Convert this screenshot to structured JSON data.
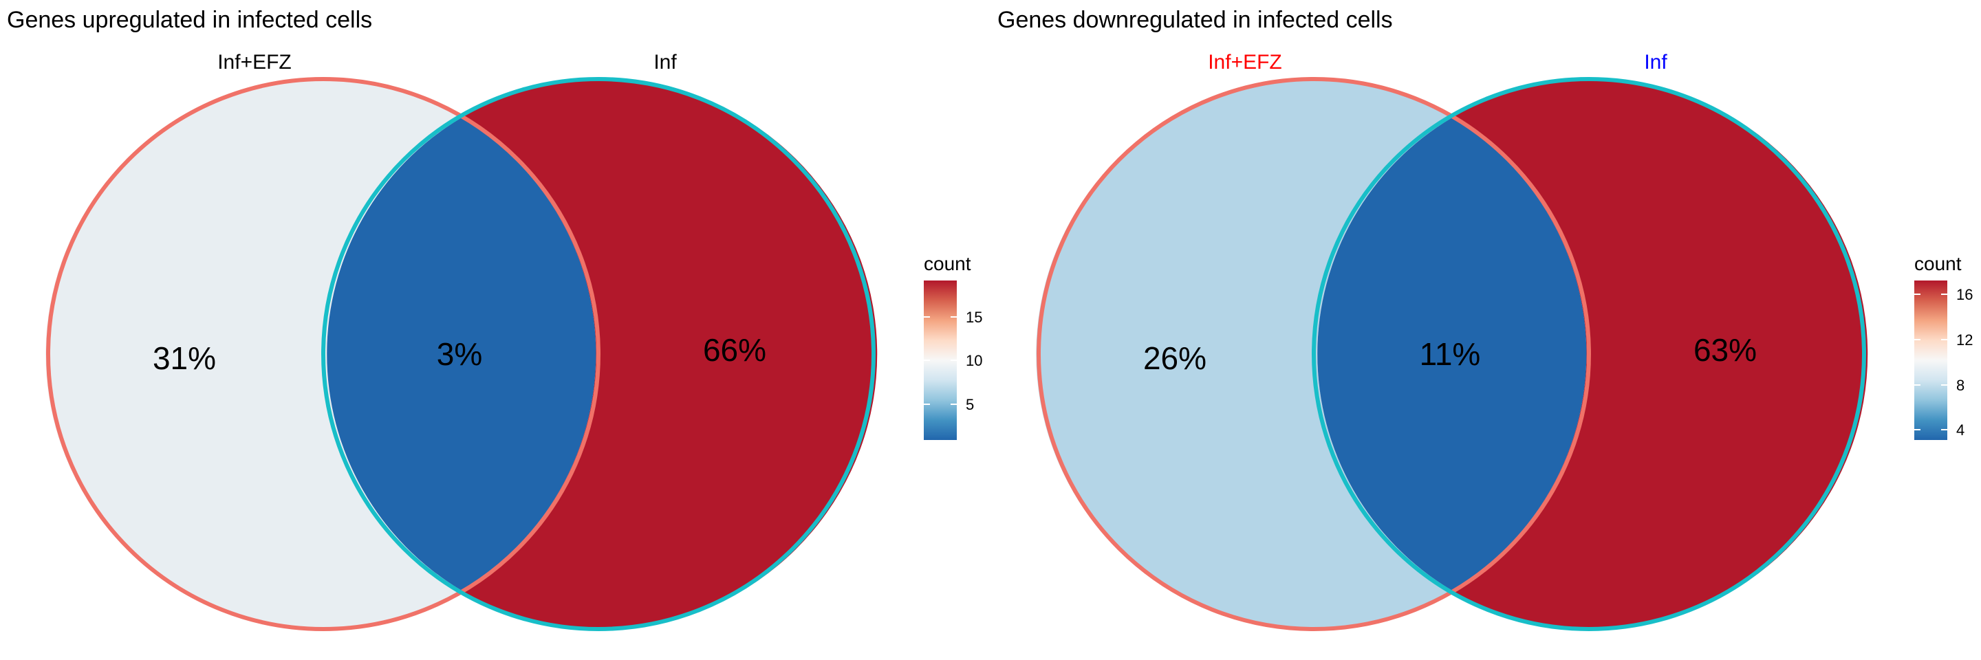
{
  "diagrams": [
    {
      "title": "Genes upregulated in infected cells",
      "set_labels": [
        {
          "text": "Inf+EFZ",
          "color": "#000000"
        },
        {
          "text": "Inf",
          "color": "#000000"
        }
      ],
      "regions": [
        {
          "id": "left_only",
          "label": "31%",
          "fill": "#E8EEF2"
        },
        {
          "id": "overlap",
          "label": "3%",
          "fill": "#2166AC"
        },
        {
          "id": "right_only",
          "label": "66%",
          "fill": "#B2182B"
        }
      ],
      "outline_colors": {
        "left": "#F07268",
        "right": "#18BEC8"
      },
      "legend": {
        "title": "count",
        "ticks": [
          "5",
          "10",
          "15"
        ],
        "tick_values": [
          5,
          10,
          15
        ],
        "range": [
          2,
          19
        ]
      }
    },
    {
      "title": "Genes downregulated in infected cells",
      "set_labels": [
        {
          "text": "Inf+EFZ",
          "color": "#FF0000"
        },
        {
          "text": "Inf",
          "color": "#0000FF"
        }
      ],
      "regions": [
        {
          "id": "left_only",
          "label": "26%",
          "fill": "#B4D5E7"
        },
        {
          "id": "overlap",
          "label": "11%",
          "fill": "#2166AC"
        },
        {
          "id": "right_only",
          "label": "63%",
          "fill": "#B2182B"
        }
      ],
      "outline_colors": {
        "left": "#F07268",
        "right": "#18BEC8"
      },
      "legend": {
        "title": "count",
        "ticks": [
          "4",
          "8",
          "12",
          "16"
        ],
        "tick_values": [
          4,
          8,
          12,
          16
        ],
        "range": [
          2.8,
          17.2
        ]
      }
    }
  ],
  "colorscale": [
    "#2166AC",
    "#4393C3",
    "#92C5DE",
    "#D1E5F0",
    "#F7F7F7",
    "#FDDBC7",
    "#F4A582",
    "#D6604D",
    "#B2182B"
  ]
}
